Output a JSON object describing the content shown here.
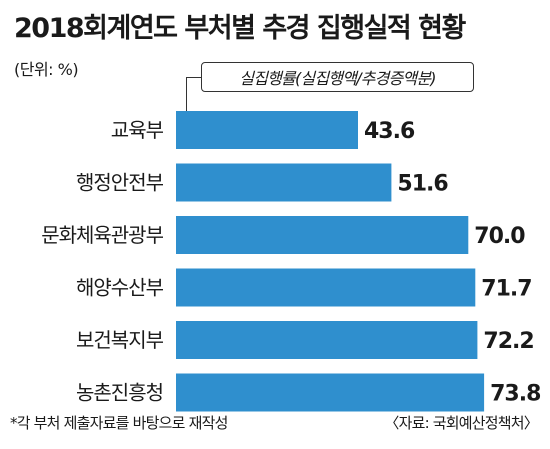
{
  "chart_data": {
    "type": "bar",
    "orientation": "horizontal",
    "title": "2018회계연도 부처별 추경 집행실적 현황",
    "unit_label": "(단위: %)",
    "series": [
      {
        "name": "실집행률(실집행액/추경증액분)",
        "color": "#2f8fce",
        "values": [
          43.6,
          51.6,
          70.0,
          71.7,
          72.2,
          73.8
        ],
        "value_labels": [
          "43.6",
          "51.6",
          "70.0",
          "71.7",
          "72.2",
          "73.8"
        ]
      }
    ],
    "categories": [
      "교육부",
      "행정안전부",
      "문화체육관광부",
      "해양수산부",
      "보건복지부",
      "농촌진흥청"
    ],
    "xlim": [
      0,
      80
    ],
    "grid": false,
    "legend": "top"
  },
  "footnote": "*각 부처 제출자료를 바탕으로 재작성",
  "source": "〈자료: 국회예산정책처〉"
}
